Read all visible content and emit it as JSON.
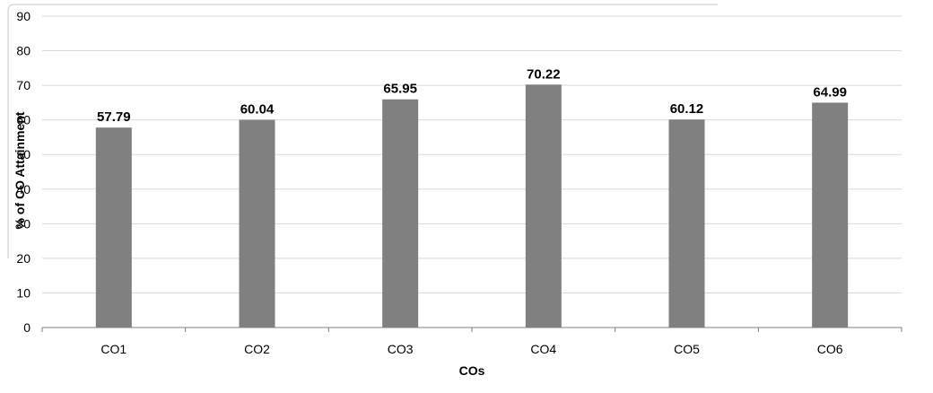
{
  "chart_data": {
    "type": "bar",
    "categories": [
      "CO1",
      "CO2",
      "CO3",
      "CO4",
      "CO5",
      "CO6"
    ],
    "values": [
      57.79,
      60.04,
      65.95,
      70.22,
      60.12,
      64.99
    ],
    "data_labels": [
      "57.79",
      "60.04",
      "65.95",
      "70.22",
      "60.12",
      "64.99"
    ],
    "xlabel": "COs",
    "ylabel": "% of CO Attainment",
    "ylim": [
      0,
      90
    ],
    "yticks": [
      "0",
      "10",
      "20",
      "30",
      "40",
      "50",
      "60",
      "70",
      "80",
      "90"
    ],
    "grid": true,
    "legend": "none",
    "colors": {
      "bar": "#808080",
      "grid": "#d9d9d9",
      "axis": "#7f7f7f",
      "text": "#000000"
    }
  }
}
